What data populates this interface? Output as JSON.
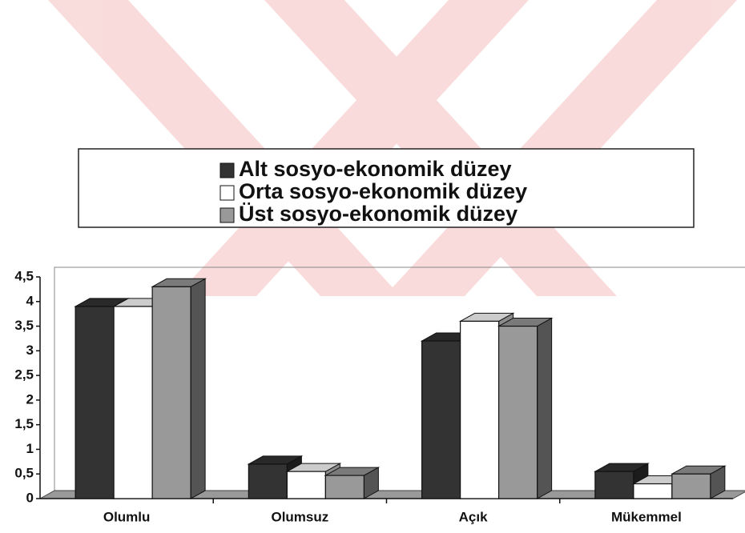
{
  "chart_data": {
    "type": "bar",
    "categories": [
      "Olumlu",
      "Olumsuz",
      "Açık",
      "Mükemmel"
    ],
    "series": [
      {
        "name": "Alt sosyo-ekonomik düzey",
        "color": "#333333",
        "values": [
          3.9,
          0.7,
          3.2,
          0.55
        ]
      },
      {
        "name": "Orta sosyo-ekonomik düzey",
        "color": "#ffffff",
        "values": [
          3.9,
          0.55,
          3.6,
          0.3
        ]
      },
      {
        "name": "Üst sosyo-ekonomik düzey",
        "color": "#999999",
        "values": [
          4.3,
          0.47,
          3.5,
          0.5
        ]
      }
    ],
    "ylim": [
      0,
      4.5
    ],
    "yticks": [
      0,
      {
        "value": 0.5,
        "label": "0,5"
      },
      1,
      {
        "value": 1.5,
        "label": "1,5"
      },
      2,
      {
        "value": 2.5,
        "label": "2,5"
      },
      3,
      {
        "value": 3.5,
        "label": "3,5"
      },
      4,
      {
        "value": 4.5,
        "label": "4,5"
      }
    ],
    "legend": "top"
  }
}
